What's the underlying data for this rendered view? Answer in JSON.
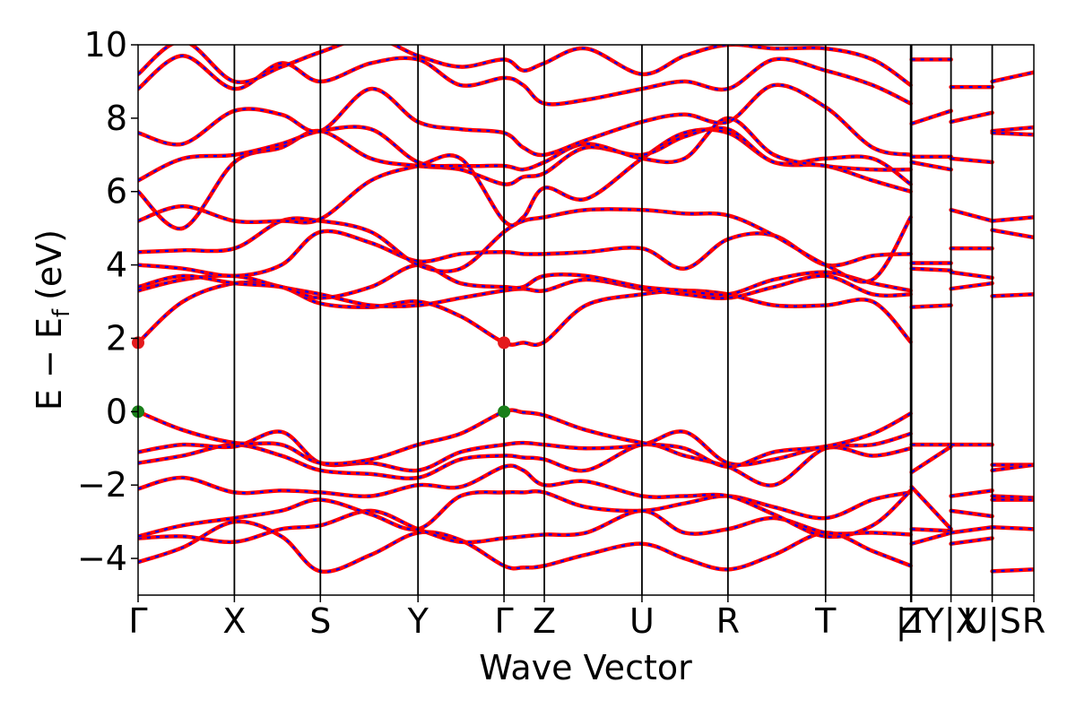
{
  "chart_data": {
    "type": "line",
    "title": "",
    "xlabel": "Wave Vector",
    "ylabel_parts": {
      "main": "E − E",
      "sub": "f",
      "unit": "(eV)"
    },
    "ylim": [
      -5,
      10
    ],
    "yticks": [
      -4,
      -2,
      0,
      2,
      4,
      6,
      8,
      10
    ],
    "ytick_labels": [
      "−4",
      "−2",
      "0",
      "2",
      "4",
      "6",
      "8",
      "10"
    ],
    "kpath": [
      {
        "label": "Γ",
        "x": 0.0
      },
      {
        "label": "X",
        "x": 0.1075
      },
      {
        "label": "S",
        "x": 0.2035
      },
      {
        "label": "Y",
        "x": 0.3125
      },
      {
        "label": "Γ",
        "x": 0.4085
      },
      {
        "label": "Z",
        "x": 0.4535
      },
      {
        "label": "U",
        "x": 0.5625
      },
      {
        "label": "R",
        "x": 0.6585
      },
      {
        "label": "T",
        "x": 0.7675
      },
      {
        "label": "Z",
        "x": 0.8625
      },
      {
        "label": "|T",
        "x": 0.8635
      },
      {
        "label": "Y|X",
        "x": 0.9075
      },
      {
        "label": "U|S",
        "x": 0.9535
      },
      {
        "label": "R",
        "x": 1.0
      }
    ],
    "series_colors": {
      "a": "#ff0000",
      "b": "#0000ff"
    },
    "extrema_markers": [
      {
        "x": 0.0,
        "y": 1.88,
        "color": "#e41a1c"
      },
      {
        "x": 0.4085,
        "y": 1.88,
        "color": "#e41a1c"
      },
      {
        "x": 0.0,
        "y": 0.0,
        "color": "#1a7f1a"
      },
      {
        "x": 0.4085,
        "y": 0.0,
        "color": "#1a7f1a"
      }
    ],
    "bands": [
      {
        "x": [
          0,
          0.05,
          0.1075,
          0.16,
          0.2035,
          0.26,
          0.3125,
          0.36,
          0.4085,
          0.43,
          0.4535,
          0.5,
          0.5625,
          0.61,
          0.6585,
          0.71,
          0.7675,
          0.82,
          0.8625
        ],
        "y": [
          -4.1,
          -3.7,
          -3.0,
          -3.4,
          -4.35,
          -3.9,
          -3.3,
          -3.5,
          -4.2,
          -4.25,
          -4.2,
          -3.9,
          -3.6,
          -4.0,
          -4.3,
          -3.9,
          -3.3,
          -3.8,
          -4.2
        ]
      },
      {
        "x": [
          0,
          0.05,
          0.1075,
          0.16,
          0.2035,
          0.26,
          0.3125,
          0.36,
          0.4085,
          0.43,
          0.4535,
          0.5,
          0.5625,
          0.61,
          0.6585,
          0.71,
          0.7675,
          0.82,
          0.8625
        ],
        "y": [
          -3.45,
          -3.4,
          -3.55,
          -3.2,
          -3.1,
          -2.7,
          -3.2,
          -3.55,
          -3.45,
          -3.4,
          -3.35,
          -3.3,
          -2.7,
          -3.3,
          -3.2,
          -2.9,
          -3.3,
          -3.3,
          -3.35
        ]
      },
      {
        "x": [
          0,
          0.05,
          0.1075,
          0.16,
          0.2035,
          0.26,
          0.3125,
          0.36,
          0.4085,
          0.43,
          0.4535,
          0.5,
          0.5625,
          0.61,
          0.6585,
          0.71,
          0.7675,
          0.82,
          0.8625
        ],
        "y": [
          -3.4,
          -3.1,
          -2.9,
          -2.7,
          -2.4,
          -2.8,
          -3.2,
          -2.3,
          -2.2,
          -2.2,
          -2.2,
          -2.6,
          -2.7,
          -2.5,
          -2.3,
          -2.6,
          -2.9,
          -2.4,
          -2.2
        ]
      },
      {
        "x": [
          0,
          0.05,
          0.1075,
          0.16,
          0.2035,
          0.26,
          0.3125,
          0.36,
          0.4085,
          0.43,
          0.4535,
          0.5,
          0.5625,
          0.61,
          0.6585,
          0.71,
          0.7675,
          0.82,
          0.8625
        ],
        "y": [
          -2.1,
          -1.8,
          -2.2,
          -2.15,
          -2.2,
          -2.3,
          -2.0,
          -2.05,
          -1.5,
          -1.6,
          -2.0,
          -1.9,
          -2.3,
          -2.3,
          -2.3,
          -2.8,
          -3.4,
          -3.1,
          -2.15
        ]
      },
      {
        "x": [
          0,
          0.05,
          0.1075,
          0.16,
          0.2035,
          0.26,
          0.3125,
          0.36,
          0.4085,
          0.43,
          0.4535,
          0.5,
          0.5625,
          0.61,
          0.6585,
          0.71,
          0.7675,
          0.82,
          0.8625
        ],
        "y": [
          -1.4,
          -1.2,
          -0.9,
          -1.2,
          -1.6,
          -1.7,
          -1.8,
          -1.3,
          -1.2,
          -1.25,
          -1.3,
          -1.6,
          -0.9,
          -1.2,
          -1.5,
          -2.0,
          -1.0,
          -1.2,
          -1.0
        ]
      },
      {
        "x": [
          0,
          0.05,
          0.1075,
          0.16,
          0.2035,
          0.26,
          0.3125,
          0.36,
          0.4085,
          0.43,
          0.4535,
          0.5,
          0.5625,
          0.61,
          0.6585,
          0.71,
          0.7675,
          0.82,
          0.8625
        ],
        "y": [
          -1.1,
          -0.9,
          -0.95,
          -0.55,
          -1.4,
          -1.4,
          -1.6,
          -1.1,
          -0.9,
          -0.85,
          -0.9,
          -1.0,
          -0.9,
          -0.55,
          -1.4,
          -1.3,
          -0.95,
          -0.9,
          -0.6
        ]
      },
      {
        "x": [
          0,
          0.05,
          0.1075,
          0.16,
          0.2035,
          0.26,
          0.3125,
          0.36,
          0.4085,
          0.43,
          0.4535,
          0.5,
          0.5625,
          0.61,
          0.6585,
          0.71,
          0.7675,
          0.82,
          0.8625
        ],
        "y": [
          0.0,
          -0.5,
          -0.85,
          -0.9,
          -1.4,
          -1.3,
          -0.9,
          -0.6,
          0.0,
          -0.02,
          -0.1,
          -0.5,
          -0.85,
          -1.0,
          -1.5,
          -1.1,
          -0.95,
          -0.6,
          -0.05
        ]
      },
      {
        "x": [
          0,
          0.05,
          0.1075,
          0.16,
          0.2035,
          0.26,
          0.3125,
          0.36,
          0.4085,
          0.43,
          0.4535,
          0.5,
          0.5625,
          0.61,
          0.6585,
          0.71,
          0.7675,
          0.82,
          0.8625
        ],
        "y": [
          1.88,
          3.0,
          3.5,
          3.4,
          2.95,
          2.85,
          3.0,
          2.6,
          1.88,
          1.88,
          1.9,
          2.9,
          3.2,
          3.3,
          3.2,
          2.9,
          2.9,
          3.0,
          1.9
        ]
      },
      {
        "x": [
          0,
          0.05,
          0.1075,
          0.16,
          0.2035,
          0.26,
          0.3125,
          0.36,
          0.4085,
          0.43,
          0.4535,
          0.5,
          0.5625,
          0.61,
          0.6585,
          0.71,
          0.7675,
          0.82,
          0.8625
        ],
        "y": [
          3.3,
          3.6,
          3.7,
          3.4,
          3.2,
          2.9,
          2.9,
          3.1,
          3.3,
          3.35,
          3.3,
          3.6,
          3.35,
          3.2,
          3.1,
          3.4,
          3.7,
          3.2,
          3.2
        ]
      },
      {
        "x": [
          0,
          0.05,
          0.1075,
          0.16,
          0.2035,
          0.26,
          0.3125,
          0.36,
          0.4085,
          0.43,
          0.4535,
          0.5,
          0.5625,
          0.61,
          0.6585,
          0.71,
          0.7675,
          0.82,
          0.8625
        ],
        "y": [
          3.4,
          3.7,
          3.5,
          3.4,
          3.1,
          3.4,
          4.0,
          3.5,
          3.4,
          3.4,
          3.7,
          3.7,
          3.4,
          3.3,
          3.2,
          3.6,
          3.8,
          3.5,
          3.3
        ]
      },
      {
        "x": [
          0,
          0.05,
          0.1075,
          0.16,
          0.2035,
          0.26,
          0.3125,
          0.36,
          0.4085,
          0.43,
          0.4535,
          0.5,
          0.5625,
          0.61,
          0.6585,
          0.71,
          0.7675,
          0.82,
          0.8625
        ],
        "y": [
          4.0,
          3.9,
          3.7,
          4.0,
          4.9,
          4.6,
          4.1,
          4.3,
          4.35,
          4.3,
          4.3,
          4.35,
          4.45,
          3.9,
          4.7,
          4.8,
          4.0,
          4.25,
          4.3
        ]
      },
      {
        "x": [
          0,
          0.05,
          0.1075,
          0.16,
          0.2035,
          0.26,
          0.3125,
          0.36,
          0.4085,
          0.43,
          0.4535,
          0.5,
          0.5625,
          0.61,
          0.6585,
          0.71,
          0.7675,
          0.82,
          0.8625
        ],
        "y": [
          4.35,
          4.4,
          4.45,
          5.2,
          5.2,
          4.9,
          4.0,
          3.9,
          4.9,
          5.2,
          5.3,
          5.5,
          5.5,
          5.4,
          5.35,
          4.8,
          4.0,
          3.6,
          5.3
        ]
      },
      {
        "x": [
          0,
          0.05,
          0.1075,
          0.16,
          0.2035,
          0.26,
          0.3125,
          0.36,
          0.4085,
          0.43,
          0.4535,
          0.5,
          0.5625,
          0.61,
          0.6585,
          0.71,
          0.7675,
          0.82,
          0.8625
        ],
        "y": [
          5.2,
          5.6,
          5.2,
          5.2,
          5.25,
          6.3,
          6.7,
          6.9,
          5.2,
          5.3,
          6.1,
          5.8,
          6.9,
          7.6,
          7.6,
          6.8,
          6.7,
          6.3,
          6.0
        ]
      },
      {
        "x": [
          0,
          0.05,
          0.1075,
          0.16,
          0.2035,
          0.26,
          0.3125,
          0.36,
          0.4085,
          0.43,
          0.4535,
          0.5,
          0.5625,
          0.61,
          0.6585,
          0.71,
          0.7675,
          0.82,
          0.8625
        ],
        "y": [
          6.0,
          5.0,
          6.8,
          7.2,
          7.65,
          6.9,
          6.7,
          6.6,
          6.2,
          6.4,
          6.5,
          7.2,
          7.0,
          7.5,
          7.7,
          6.8,
          6.9,
          6.9,
          6.2
        ]
      },
      {
        "x": [
          0,
          0.05,
          0.1075,
          0.16,
          0.2035,
          0.26,
          0.3125,
          0.36,
          0.4085,
          0.43,
          0.4535,
          0.5,
          0.5625,
          0.61,
          0.6585,
          0.71,
          0.7675,
          0.82,
          0.8625
        ],
        "y": [
          6.3,
          6.9,
          7.0,
          7.3,
          7.65,
          7.7,
          6.8,
          6.7,
          6.7,
          6.6,
          6.8,
          7.3,
          6.9,
          6.9,
          8.0,
          7.0,
          6.7,
          6.6,
          6.6
        ]
      },
      {
        "x": [
          0,
          0.05,
          0.1075,
          0.16,
          0.2035,
          0.26,
          0.3125,
          0.36,
          0.4085,
          0.43,
          0.4535,
          0.5,
          0.5625,
          0.61,
          0.6585,
          0.71,
          0.7675,
          0.82,
          0.8625
        ],
        "y": [
          7.6,
          7.3,
          8.2,
          8.1,
          7.65,
          8.8,
          7.9,
          7.7,
          7.6,
          7.2,
          7.0,
          7.4,
          7.9,
          8.1,
          7.9,
          8.9,
          8.3,
          7.2,
          7.0
        ]
      },
      {
        "x": [
          0,
          0.05,
          0.1075,
          0.16,
          0.2035,
          0.26,
          0.3125,
          0.36,
          0.4085,
          0.43,
          0.4535,
          0.5,
          0.5625,
          0.61,
          0.6585,
          0.71,
          0.7675,
          0.82,
          0.8625
        ],
        "y": [
          8.8,
          9.7,
          8.8,
          9.5,
          9.0,
          9.5,
          9.6,
          8.9,
          9.1,
          8.9,
          8.4,
          8.5,
          8.8,
          9.0,
          8.8,
          9.6,
          9.3,
          8.9,
          8.4
        ]
      },
      {
        "x": [
          0,
          0.05,
          0.1075,
          0.16,
          0.2035,
          0.26,
          0.3125,
          0.36,
          0.4085,
          0.43,
          0.4535,
          0.5,
          0.5625,
          0.61,
          0.6585,
          0.71,
          0.7675,
          0.82,
          0.8625
        ],
        "y": [
          9.2,
          10.1,
          9.0,
          9.4,
          9.8,
          10.2,
          9.7,
          9.4,
          9.6,
          9.3,
          9.5,
          9.9,
          9.2,
          9.7,
          10.0,
          9.9,
          9.9,
          9.6,
          8.9
        ]
      },
      {
        "x": [
          0.8635,
          0.9075
        ],
        "y": [
          9.6,
          9.6
        ]
      },
      {
        "x": [
          0.8635,
          0.9075
        ],
        "y": [
          7.85,
          8.2
        ]
      },
      {
        "x": [
          0.8635,
          0.9075
        ],
        "y": [
          6.95,
          6.95
        ]
      },
      {
        "x": [
          0.8635,
          0.9075
        ],
        "y": [
          6.8,
          6.6
        ]
      },
      {
        "x": [
          0.8635,
          0.9075
        ],
        "y": [
          4.05,
          4.05
        ]
      },
      {
        "x": [
          0.8635,
          0.9075
        ],
        "y": [
          3.9,
          3.85
        ]
      },
      {
        "x": [
          0.8635,
          0.9075
        ],
        "y": [
          2.85,
          2.9
        ]
      },
      {
        "x": [
          0.8635,
          0.9075
        ],
        "y": [
          -0.9,
          -0.9
        ]
      },
      {
        "x": [
          0.8635,
          0.9075
        ],
        "y": [
          -1.65,
          -0.95
        ]
      },
      {
        "x": [
          0.8635,
          0.9075
        ],
        "y": [
          -2.05,
          -3.2
        ]
      },
      {
        "x": [
          0.8635,
          0.9075
        ],
        "y": [
          -3.2,
          -3.25
        ]
      },
      {
        "x": [
          0.8635,
          0.9075
        ],
        "y": [
          -3.6,
          -3.3
        ]
      },
      {
        "x": [
          0.9075,
          0.9535
        ],
        "y": [
          8.85,
          8.85
        ]
      },
      {
        "x": [
          0.9075,
          0.9535
        ],
        "y": [
          7.9,
          8.15
        ]
      },
      {
        "x": [
          0.9075,
          0.9535
        ],
        "y": [
          6.9,
          6.8
        ]
      },
      {
        "x": [
          0.9075,
          0.9535
        ],
        "y": [
          5.5,
          5.2
        ]
      },
      {
        "x": [
          0.9075,
          0.9535
        ],
        "y": [
          4.45,
          4.45
        ]
      },
      {
        "x": [
          0.9075,
          0.9535
        ],
        "y": [
          3.8,
          3.65
        ]
      },
      {
        "x": [
          0.9075,
          0.9535
        ],
        "y": [
          3.35,
          3.5
        ]
      },
      {
        "x": [
          0.9075,
          0.9535
        ],
        "y": [
          -0.9,
          -0.9
        ]
      },
      {
        "x": [
          0.9075,
          0.9535
        ],
        "y": [
          -2.3,
          -2.15
        ]
      },
      {
        "x": [
          0.9075,
          0.9535
        ],
        "y": [
          -2.7,
          -2.85
        ]
      },
      {
        "x": [
          0.9075,
          0.9535
        ],
        "y": [
          -3.3,
          -3.15
        ]
      },
      {
        "x": [
          0.9075,
          0.9535
        ],
        "y": [
          -3.6,
          -3.45
        ]
      },
      {
        "x": [
          0.9535,
          1.0
        ],
        "y": [
          9.0,
          9.25
        ]
      },
      {
        "x": [
          0.9535,
          1.0
        ],
        "y": [
          7.65,
          7.75
        ]
      },
      {
        "x": [
          0.9535,
          1.0
        ],
        "y": [
          7.6,
          7.55
        ]
      },
      {
        "x": [
          0.9535,
          1.0
        ],
        "y": [
          5.2,
          5.3
        ]
      },
      {
        "x": [
          0.9535,
          1.0
        ],
        "y": [
          4.95,
          4.75
        ]
      },
      {
        "x": [
          0.9535,
          1.0
        ],
        "y": [
          3.15,
          3.2
        ]
      },
      {
        "x": [
          0.9535,
          1.0
        ],
        "y": [
          -1.45,
          -1.45
        ]
      },
      {
        "x": [
          0.9535,
          1.0
        ],
        "y": [
          -1.6,
          -1.45
        ]
      },
      {
        "x": [
          0.9535,
          1.0
        ],
        "y": [
          -2.3,
          -2.35
        ]
      },
      {
        "x": [
          0.9535,
          1.0
        ],
        "y": [
          -2.4,
          -2.4
        ]
      },
      {
        "x": [
          0.9535,
          1.0
        ],
        "y": [
          -3.15,
          -3.2
        ]
      },
      {
        "x": [
          0.9535,
          1.0
        ],
        "y": [
          -4.35,
          -4.3
        ]
      }
    ]
  }
}
